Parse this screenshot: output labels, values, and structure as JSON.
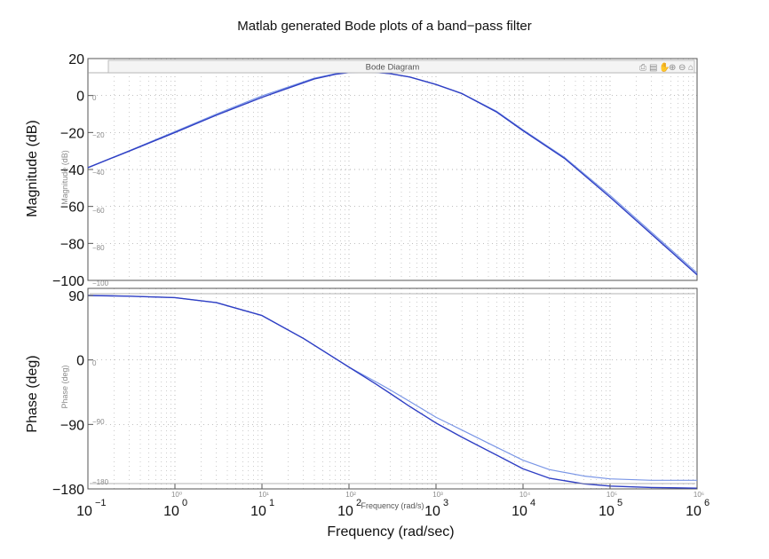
{
  "title": "Matlab generated Bode plots of a band−pass filter",
  "colors": {
    "series_dark": "#2f3fc4",
    "series_light": "#7a96e6",
    "grid": "#9a9a9a",
    "axis": "#555555",
    "overlay": "#9a9a9a"
  },
  "overlay": {
    "title": "Bode Diagram",
    "toolbar_icons": [
      "print-icon",
      "save-icon",
      "pan-icon",
      "zoom-in-icon",
      "zoom-out-icon",
      "home-icon"
    ],
    "mag_ylabel": "Magnitude (dB)",
    "phase_ylabel": "Phase (deg)",
    "xlabel": "Frequency  (rad/s)",
    "mag_ticks": [
      "0",
      "−20",
      "−40",
      "−60",
      "−80",
      "−100"
    ],
    "phase_ticks": [
      "0",
      "−90",
      "−180"
    ],
    "x_ticks": [
      "10⁰",
      "10¹",
      "10²",
      "10³",
      "10⁴",
      "10⁵",
      "10⁶"
    ]
  },
  "chart_data": [
    {
      "type": "line",
      "panel": "magnitude",
      "ylabel": "Magnitude (dB)",
      "xscale": "log",
      "xlim": [
        0.1,
        1000000
      ],
      "ylim": [
        -100,
        20
      ],
      "grid": true,
      "x": [
        0.1,
        0.3,
        1,
        3,
        10,
        20,
        40,
        70,
        100,
        150,
        200,
        300,
        500,
        1000,
        2000,
        5000,
        10000,
        30000,
        100000,
        300000,
        1000000
      ],
      "series": [
        {
          "values": [
            -39,
            -30,
            -20,
            -10.6,
            -1,
            4,
            9,
            11.5,
            12.5,
            12.8,
            12.6,
            11.8,
            10,
            6,
            1,
            -9,
            -19,
            -34,
            -55,
            -75,
            -97
          ]
        },
        {
          "values": [
            -39,
            -29.8,
            -19.5,
            -10,
            -0.2,
            4.6,
            9.4,
            11.8,
            12.6,
            12.8,
            12.6,
            11.8,
            10,
            6,
            1,
            -8.6,
            -18.6,
            -33.5,
            -54,
            -74,
            -96
          ]
        }
      ],
      "tick_labels_y": [
        "20",
        "0",
        "−20",
        "−40",
        "−60",
        "−80",
        "−100"
      ]
    },
    {
      "type": "line",
      "panel": "phase",
      "ylabel": "Phase (deg)",
      "xlabel": "Frequency  (rad/sec)",
      "xscale": "log",
      "xlim": [
        0.1,
        1000000
      ],
      "ylim": [
        -180,
        90
      ],
      "grid": true,
      "x": [
        0.1,
        0.3,
        1,
        3,
        10,
        30,
        100,
        200,
        300,
        500,
        1000,
        2000,
        5000,
        10000,
        20000,
        50000,
        100000,
        300000,
        1000000
      ],
      "series": [
        {
          "values": [
            90,
            89,
            87,
            80,
            62,
            30,
            -10,
            -33,
            -47,
            -65,
            -88,
            -108,
            -133,
            -152,
            -165,
            -173,
            -176,
            -178,
            -179
          ]
        },
        {
          "values": [
            90,
            89,
            87,
            80,
            62,
            30,
            -10,
            -30,
            -42,
            -58,
            -80,
            -98,
            -122,
            -140,
            -153,
            -162,
            -166,
            -168,
            -168
          ]
        }
      ],
      "tick_labels_y": [
        "90",
        "0",
        "−90",
        "−180"
      ],
      "tick_labels_x": [
        "10",
        "10",
        "10",
        "10",
        "10",
        "10",
        "10",
        "10"
      ],
      "tick_exponents_x": [
        "−1",
        "0",
        "1",
        "2",
        "3",
        "4",
        "5",
        "6"
      ]
    }
  ]
}
